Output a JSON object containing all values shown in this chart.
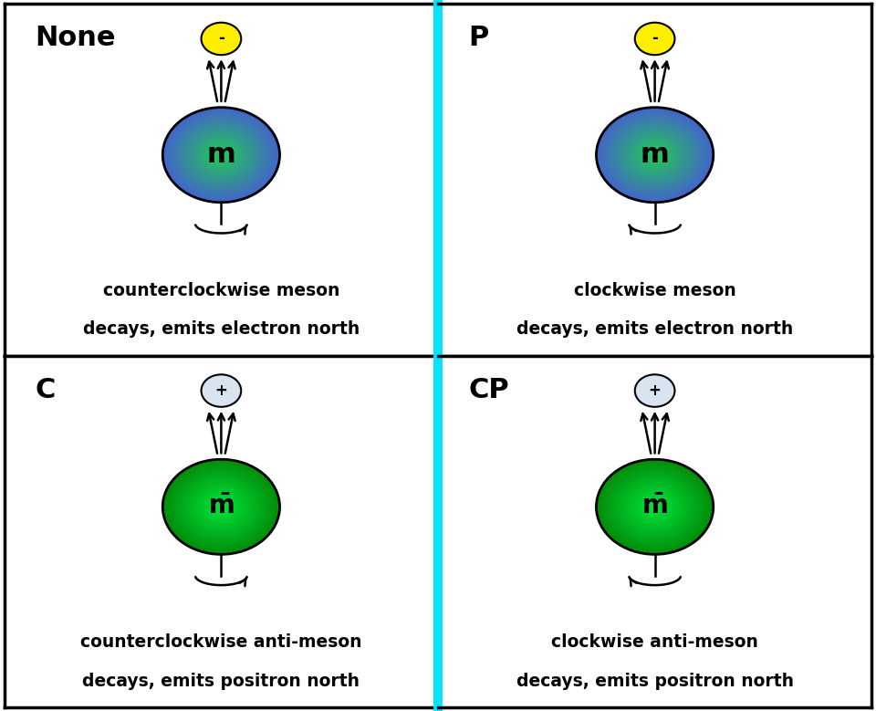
{
  "panels": [
    {
      "label": "None",
      "col": 0,
      "row": 0,
      "is_meson": true,
      "charge_symbol": "-",
      "charge_color": "#ffee00",
      "spin_direction": "counterclockwise",
      "desc1": "counterclockwise meson",
      "desc2": "decays, emits electron north"
    },
    {
      "label": "P",
      "col": 1,
      "row": 0,
      "is_meson": true,
      "charge_symbol": "-",
      "charge_color": "#ffee00",
      "spin_direction": "clockwise",
      "desc1": "clockwise meson",
      "desc2": "decays, emits electron north"
    },
    {
      "label": "C",
      "col": 0,
      "row": 1,
      "is_meson": false,
      "charge_symbol": "+",
      "charge_color": "#d8e4f0",
      "spin_direction": "counterclockwise",
      "desc1": "counterclockwise anti-meson",
      "desc2": "decays, emits positron north"
    },
    {
      "label": "CP",
      "col": 1,
      "row": 1,
      "is_meson": false,
      "charge_symbol": "+",
      "charge_color": "#d8e4f0",
      "spin_direction": "clockwise",
      "desc1": "clockwise anti-meson",
      "desc2": "decays, emits positron north"
    }
  ],
  "cyan_color": "#00e5ff",
  "border_color": "#000000",
  "bg_color": "#ffffff",
  "text_color": "#000000",
  "cyan_lw": 7,
  "border_lw": 2.5
}
